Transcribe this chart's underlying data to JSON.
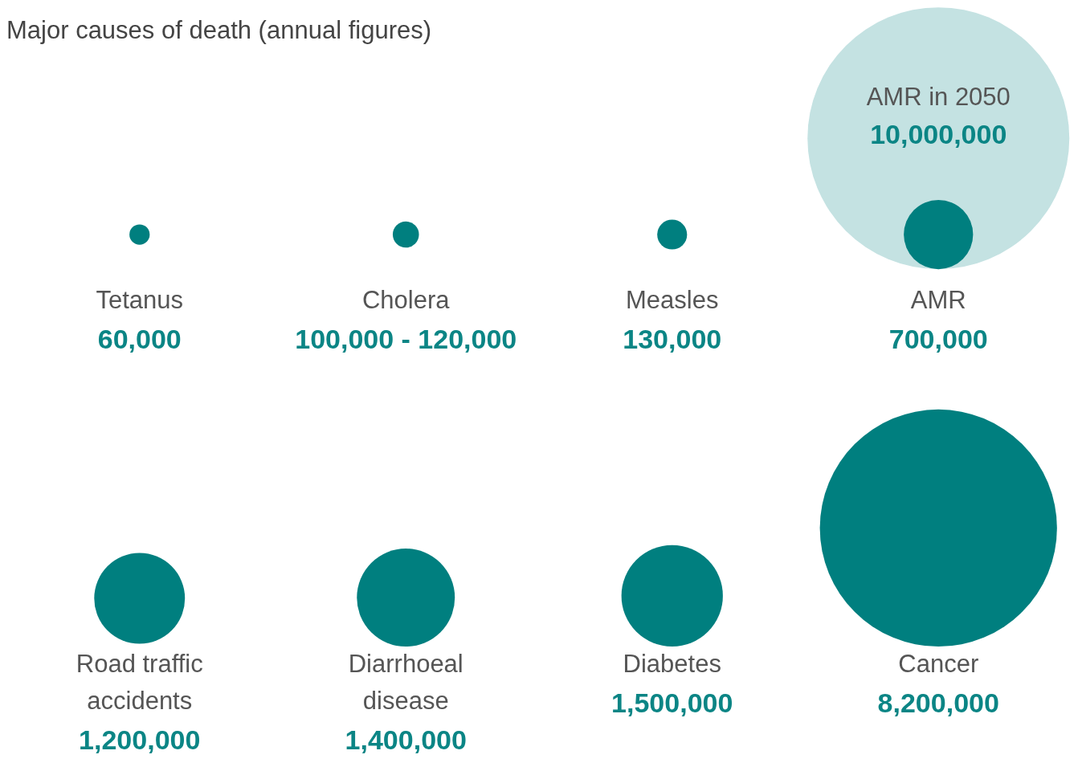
{
  "chart_data": {
    "type": "other",
    "title": "Major causes of death (annual figures)",
    "categories": [
      "Tetanus",
      "Cholera",
      "Measles",
      "AMR",
      "Road traffic accidents",
      "Diarrhoeal disease",
      "Diabetes",
      "Cancer"
    ],
    "series": [
      {
        "name": "AMR in 2050",
        "color": "#c4e2e2",
        "values": [
          null,
          null,
          null,
          10000000,
          null,
          null,
          null,
          null
        ],
        "value_labels": [
          null,
          null,
          null,
          "10,000,000",
          null,
          null,
          null,
          null
        ]
      },
      {
        "color": "#007f7f",
        "values": [
          60000,
          100000,
          130000,
          700000,
          1200000,
          1400000,
          1500000,
          8200000
        ],
        "value_labels": [
          "60,000",
          "100,000 - 120,000",
          "130,000",
          "700,000",
          "1,200,000",
          "1,400,000",
          "1,500,000",
          "8,200,000"
        ]
      }
    ]
  }
}
